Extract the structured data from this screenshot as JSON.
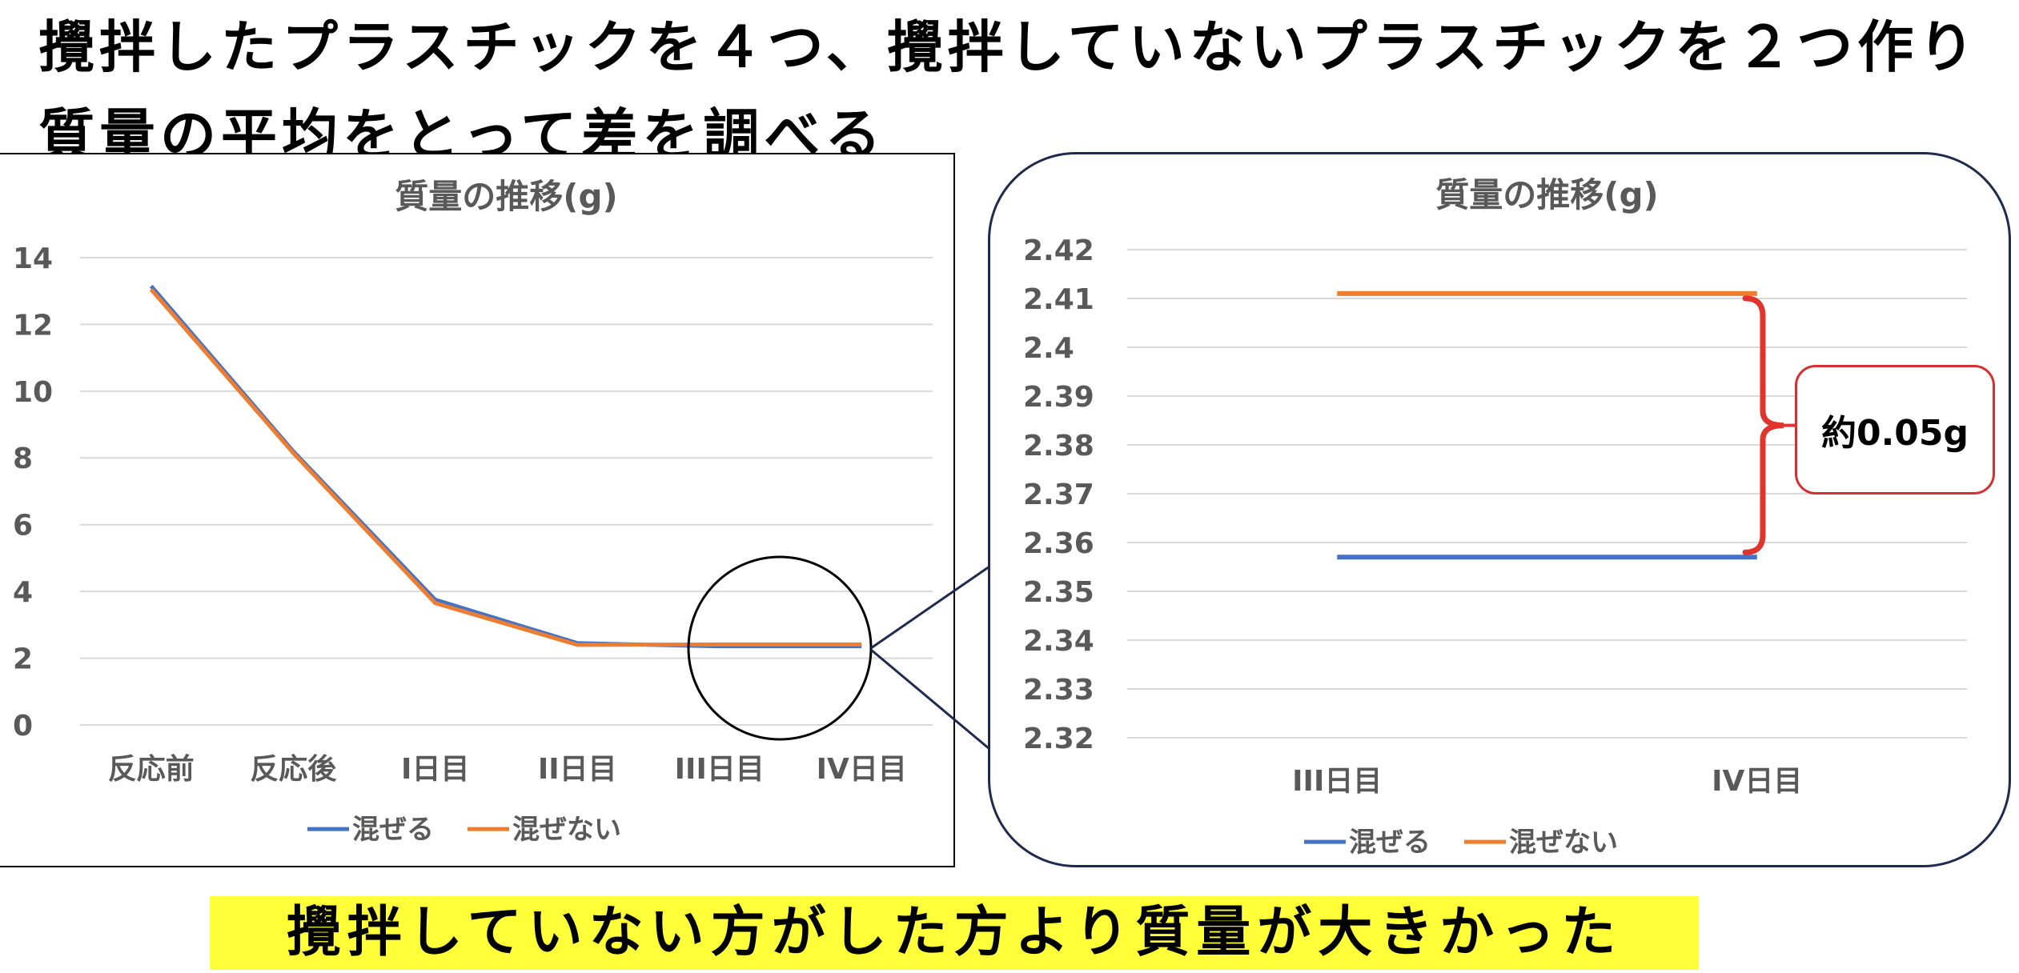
{
  "headline": {
    "line1": "攪拌したプラスチックを４つ、攪拌していないプラスチックを２つ作り",
    "line2": "質量の平均をとって差を調べる"
  },
  "callout": {
    "label": "約0.05g"
  },
  "conclusion": {
    "text": "攪拌していない方がした方より質量が大きかった"
  },
  "colors": {
    "series_mix": "#4472c4",
    "series_nomix": "#ed7d31",
    "bracket": "#e0342c"
  },
  "chart_data": [
    {
      "type": "line",
      "title": "質量の推移(g)",
      "categories": [
        "反応前",
        "反応後",
        "I日目",
        "II日目",
        "III日目",
        "IV日目"
      ],
      "series": [
        {
          "name": "混ぜる",
          "values": [
            13.15,
            8.2,
            3.75,
            2.45,
            2.357,
            2.357
          ]
        },
        {
          "name": "混ぜない",
          "values": [
            13.05,
            8.15,
            3.65,
            2.4,
            2.411,
            2.411
          ]
        }
      ],
      "ylim": [
        0,
        14
      ],
      "yticks": [
        0,
        2,
        4,
        6,
        8,
        10,
        12,
        14
      ],
      "grid": true,
      "legend": "bottom"
    },
    {
      "type": "line",
      "title": "質量の推移(g)",
      "categories": [
        "III日目",
        "IV日目"
      ],
      "series": [
        {
          "name": "混ぜる",
          "values": [
            2.357,
            2.357
          ]
        },
        {
          "name": "混ぜない",
          "values": [
            2.411,
            2.411
          ]
        }
      ],
      "ylim": [
        2.32,
        2.42
      ],
      "yticks": [
        2.32,
        2.33,
        2.34,
        2.35,
        2.36,
        2.37,
        2.38,
        2.39,
        2.4,
        2.41,
        2.42
      ],
      "grid": true,
      "legend": "bottom"
    }
  ]
}
